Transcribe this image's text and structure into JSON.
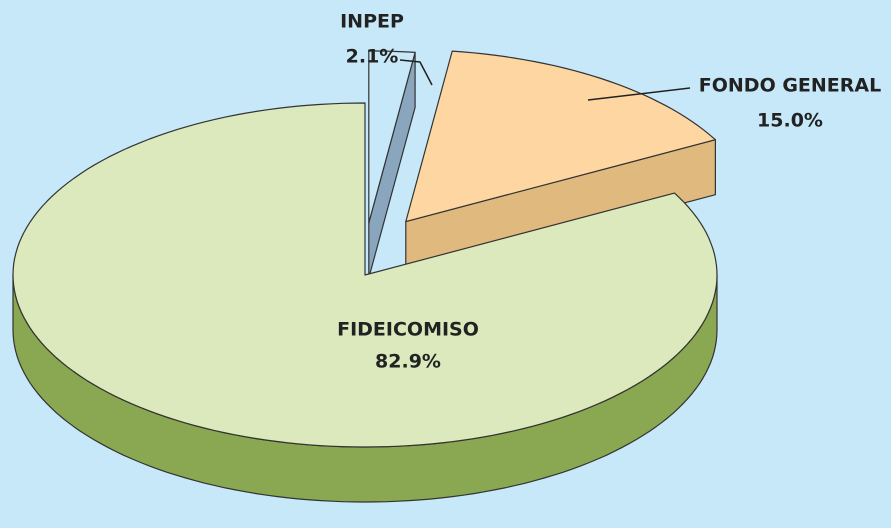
{
  "chart_data": {
    "type": "pie",
    "categories": [
      "INPEP",
      "FONDO GENERAL",
      "FIDEICOMISO"
    ],
    "values": [
      2.1,
      15.0,
      82.9
    ],
    "value_labels": [
      "2.1%",
      "15.0%",
      "82.9%"
    ],
    "colors": [
      "#c6e8f8",
      "#fdd6a2",
      "#dbe9bd"
    ],
    "side_colors": [
      "#8aa6bf",
      "#dfb97e",
      "#8aa851"
    ]
  }
}
